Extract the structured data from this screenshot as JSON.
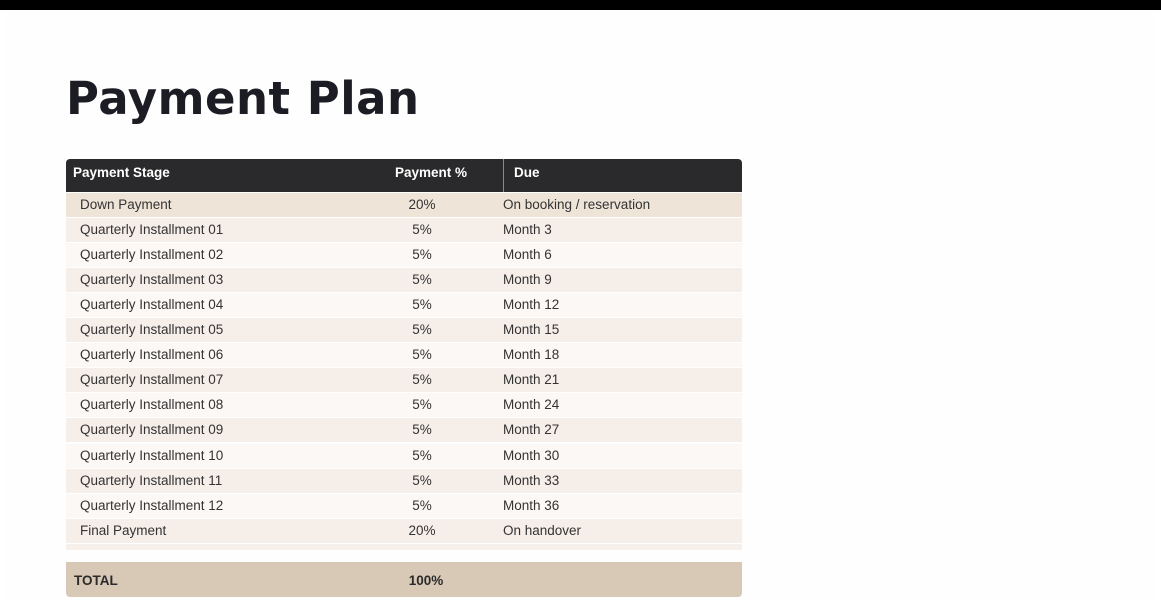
{
  "title": "Payment Plan",
  "table": {
    "header": [
      "Payment Stage",
      "Payment %",
      "Due"
    ],
    "rows": [
      [
        "Down Payment",
        "20%",
        "On booking / reservation"
      ],
      [
        "Quarterly Installment 01",
        "5%",
        "Month 3"
      ],
      [
        "Quarterly Installment 02",
        "5%",
        "Month 6"
      ],
      [
        "Quarterly Installment 03",
        "5%",
        "Month 9"
      ],
      [
        "Quarterly Installment 04",
        "5%",
        "Month 12"
      ],
      [
        "Quarterly Installment 05",
        "5%",
        "Month 15"
      ],
      [
        "Quarterly Installment 06",
        "5%",
        "Month 18"
      ],
      [
        "Quarterly Installment 07",
        "5%",
        "Month 21"
      ],
      [
        "Quarterly Installment 08",
        "5%",
        "Month 24"
      ],
      [
        "Quarterly Installment 09",
        "5%",
        "Month 27"
      ],
      [
        "Quarterly Installment 10",
        "5%",
        "Month 30"
      ],
      [
        "Quarterly Installment 11",
        "5%",
        "Month 33"
      ],
      [
        "Quarterly Installment 12",
        "5%",
        "Month 36"
      ],
      [
        "Final Payment",
        "20%",
        "On handover"
      ]
    ],
    "total": [
      "TOTAL",
      "100%"
    ]
  }
}
